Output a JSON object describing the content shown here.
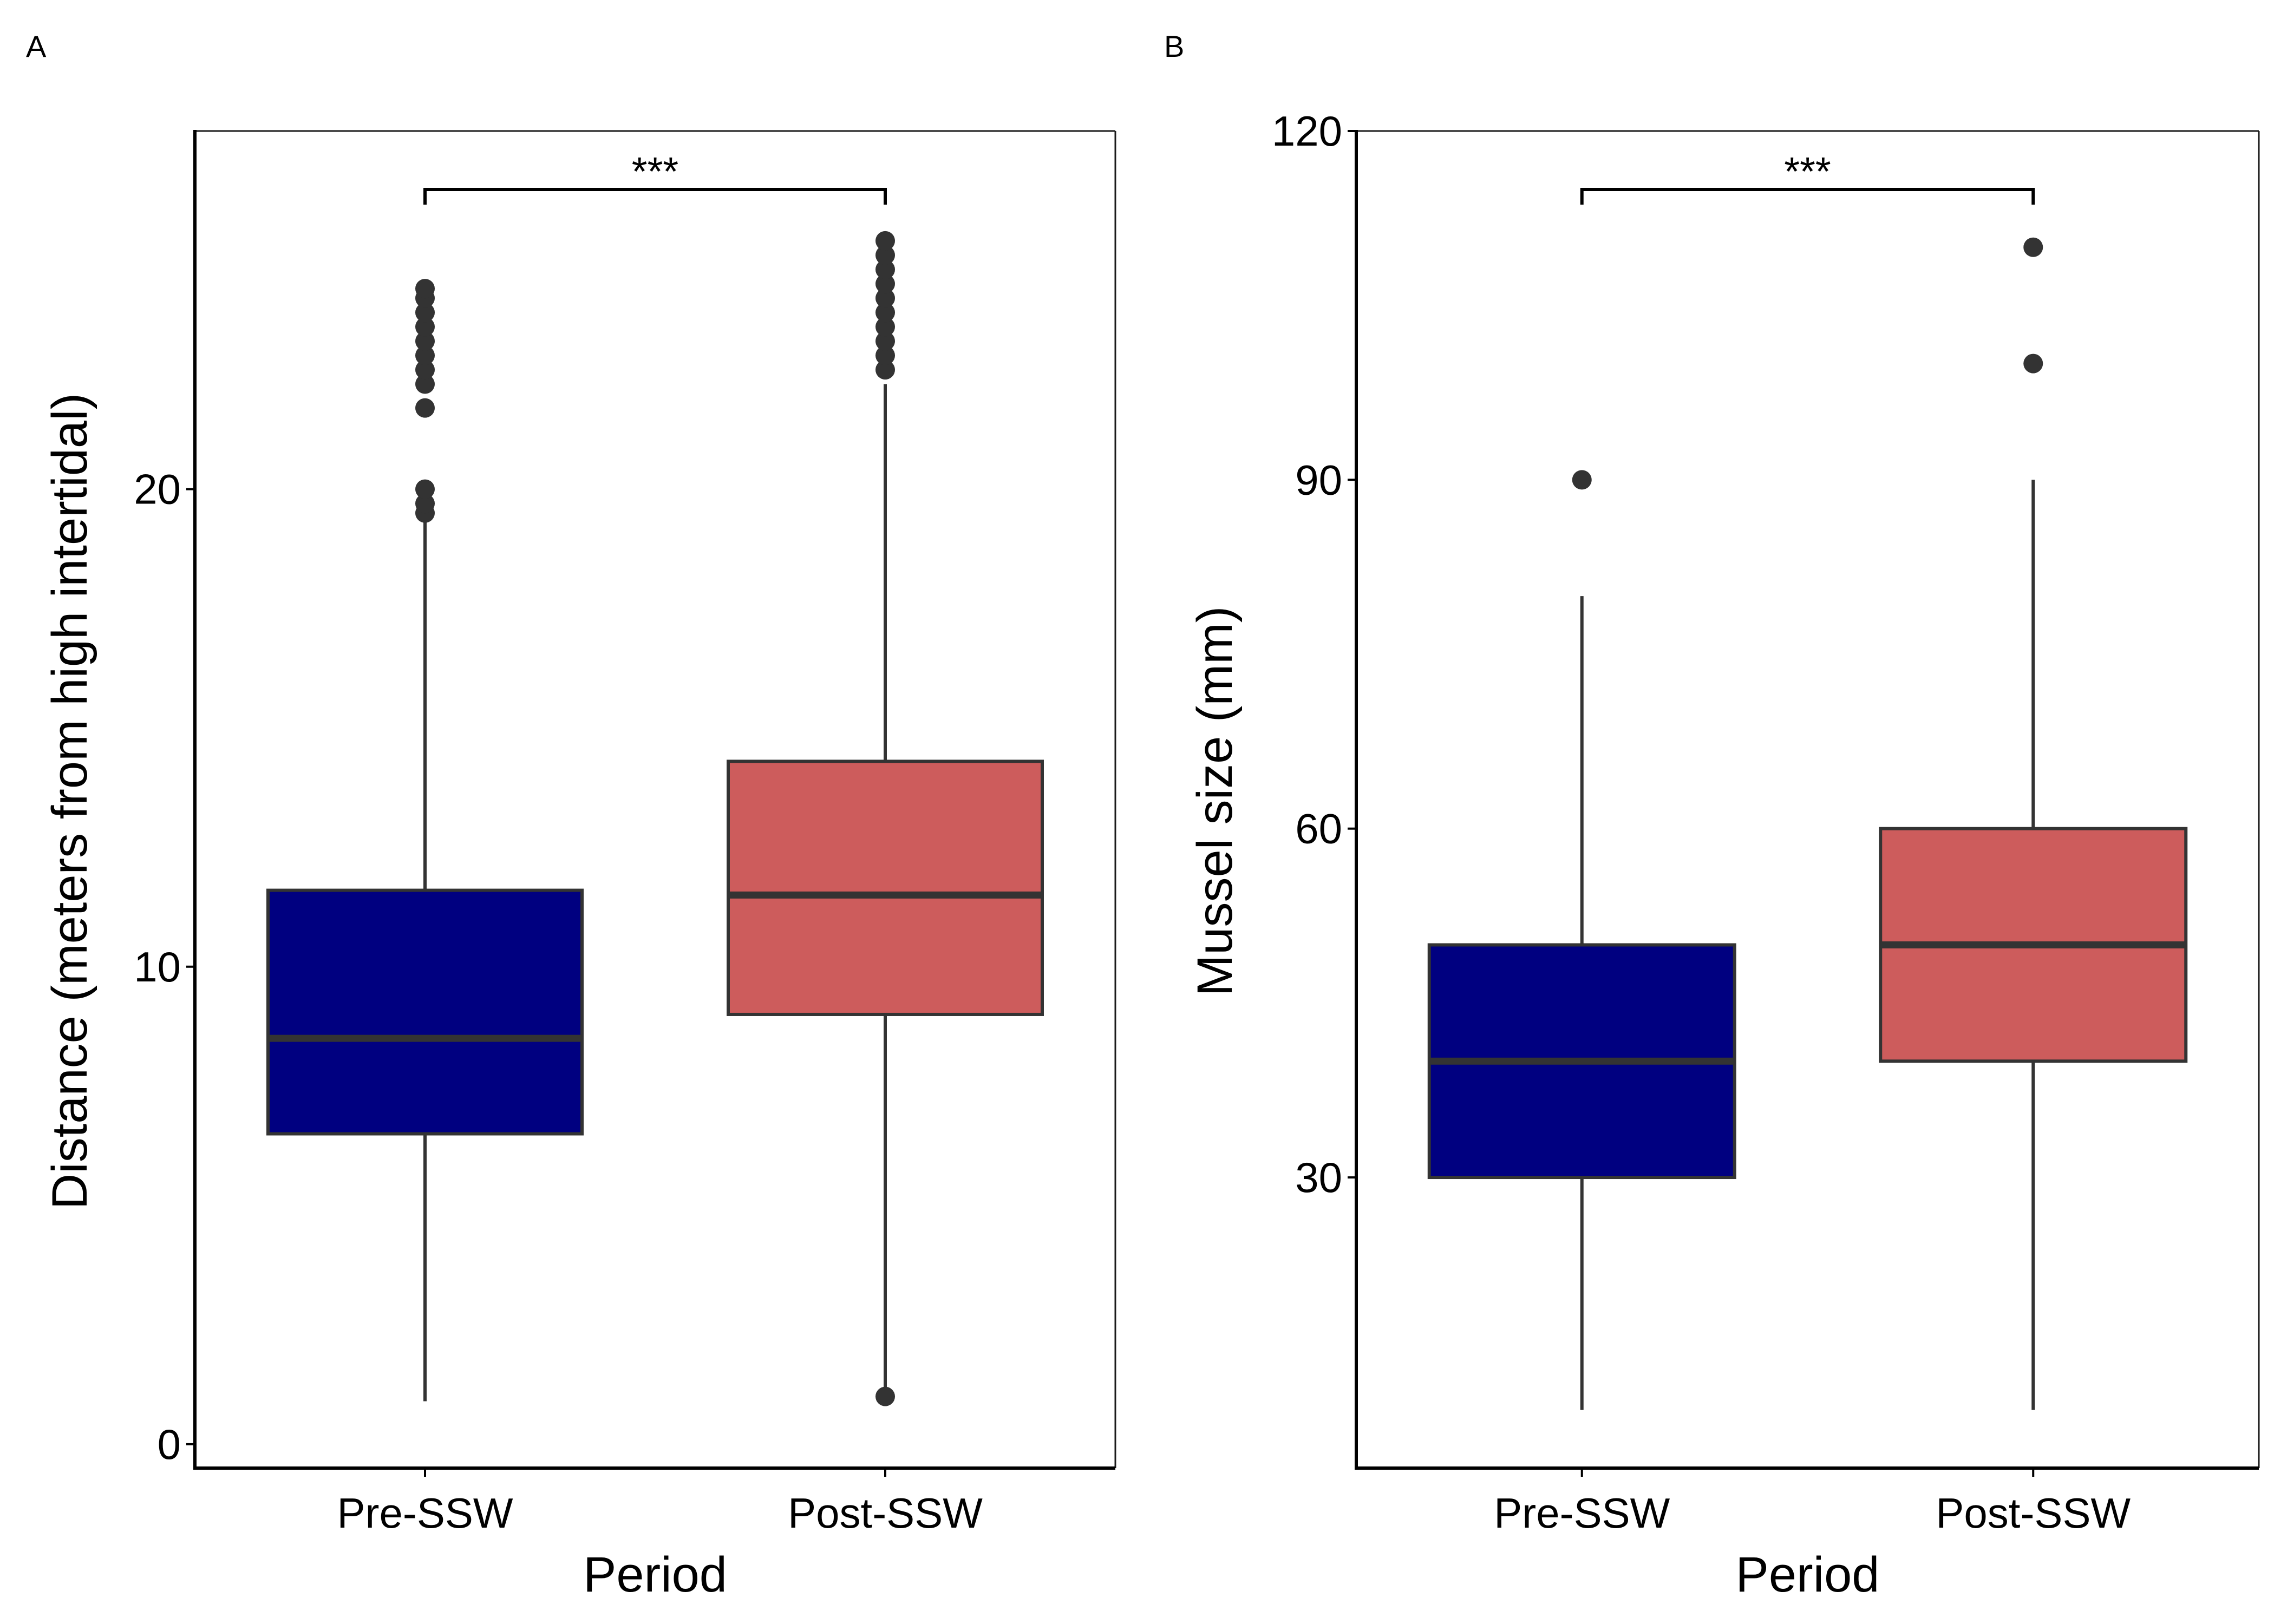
{
  "chart_data": [
    {
      "type": "box",
      "panel": "A",
      "xlabel": "Period",
      "ylabel": "Distance (meters from high intertidal)",
      "ylim": [
        -0.5,
        27.5
      ],
      "yticks": [
        0,
        10,
        20
      ],
      "categories": [
        "Pre-SSW",
        "Post-SSW"
      ],
      "boxes": [
        {
          "category": "Pre-SSW",
          "color": "#000080",
          "whisker_low": 0.9,
          "q1": 6.5,
          "median": 8.5,
          "q3": 11.6,
          "whisker_high": 19.3,
          "outliers": [
            19.5,
            19.7,
            20.0,
            21.7,
            22.2,
            22.5,
            22.8,
            23.1,
            23.4,
            23.7,
            24.0,
            24.2
          ]
        },
        {
          "category": "Post-SSW",
          "color": "#CD5C5C",
          "whisker_low": 1.0,
          "q1": 9.0,
          "median": 11.5,
          "q3": 14.3,
          "whisker_high": 22.2,
          "outliers": [
            1.0,
            22.5,
            22.8,
            23.1,
            23.4,
            23.7,
            24.0,
            24.3,
            24.6,
            24.9,
            25.2
          ]
        }
      ],
      "significance": {
        "label": "***",
        "between": [
          "Pre-SSW",
          "Post-SSW"
        ]
      },
      "grid": false,
      "legend": "none"
    },
    {
      "type": "box",
      "panel": "B",
      "xlabel": "Period",
      "ylabel": "Mussel size (mm)",
      "ylim": [
        5,
        120
      ],
      "yticks": [
        30,
        60,
        90,
        120
      ],
      "categories": [
        "Pre-SSW",
        "Post-SSW"
      ],
      "boxes": [
        {
          "category": "Pre-SSW",
          "color": "#000080",
          "whisker_low": 10,
          "q1": 30,
          "median": 40,
          "q3": 50,
          "whisker_high": 80,
          "outliers": [
            90
          ]
        },
        {
          "category": "Post-SSW",
          "color": "#CD5C5C",
          "whisker_low": 10,
          "q1": 40,
          "median": 50,
          "q3": 60,
          "whisker_high": 90,
          "outliers": [
            100,
            110
          ]
        }
      ],
      "significance": {
        "label": "***",
        "between": [
          "Pre-SSW",
          "Post-SSW"
        ]
      },
      "grid": false,
      "legend": "none"
    }
  ]
}
